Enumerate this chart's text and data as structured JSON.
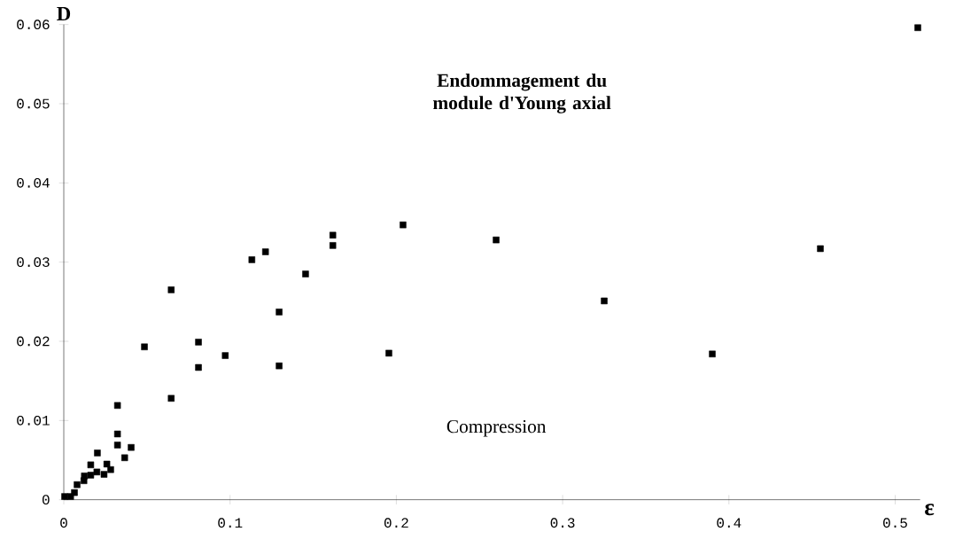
{
  "chart_data": {
    "type": "scatter",
    "title": "Endommagement du module d'Young axial",
    "xlabel": "ε",
    "ylabel": "D",
    "annotations": [
      "Compression"
    ],
    "x": [
      0.5136,
      0.204,
      0.1618,
      0.1618,
      0.1213,
      0.1131,
      0.1454,
      0.0646,
      0.1295,
      0.081,
      0.0485,
      0.0971,
      0.1955,
      0.081,
      0.1295,
      0.0646,
      0.0323,
      0.26,
      0.325,
      0.39,
      0.455,
      0.0323,
      0.0323,
      0.0405,
      0.0366,
      0.0202,
      0.0162,
      0.0259,
      0.0199,
      0.0242,
      0.0282,
      0.0162,
      0.0121,
      0.0124,
      0.008,
      0.0064,
      0.0041,
      0.0005
    ],
    "values": [
      0.0596,
      0.0347,
      0.0334,
      0.0321,
      0.0313,
      0.0303,
      0.0285,
      0.0265,
      0.0237,
      0.0199,
      0.0193,
      0.0182,
      0.0185,
      0.0167,
      0.0169,
      0.0128,
      0.0119,
      0.0328,
      0.0251,
      0.0184,
      0.0317,
      0.0083,
      0.0069,
      0.0066,
      0.0053,
      0.0059,
      0.0044,
      0.0045,
      0.0035,
      0.0032,
      0.0038,
      0.0031,
      0.0024,
      0.003,
      0.0019,
      0.0009,
      0.0004,
      0.0004
    ],
    "color": "#000000",
    "marker": "square",
    "xlim": [
      0,
      0.515
    ],
    "ylim": [
      0,
      0.06
    ],
    "xticks": [
      0,
      0.1,
      0.2,
      0.3,
      0.4,
      0.5
    ],
    "yticks": [
      0,
      0.01,
      0.02,
      0.03,
      0.04,
      0.05,
      0.06
    ]
  }
}
